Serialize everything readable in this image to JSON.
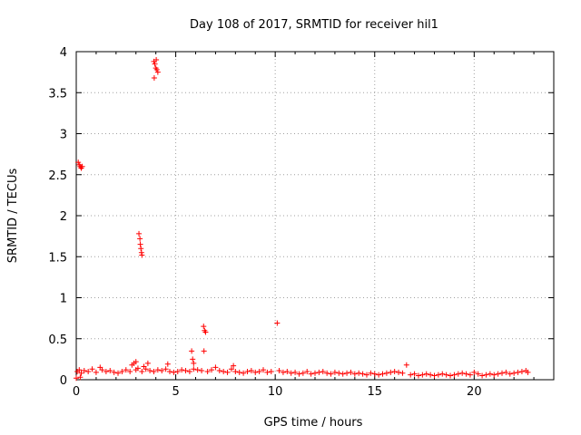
{
  "chart_data": {
    "type": "scatter",
    "title": "Day 108 of 2017, SRMTID for receiver hil1",
    "xlabel": "GPS time / hours",
    "ylabel": "SRMTID / TECUs",
    "xlim": [
      0,
      24
    ],
    "ylim": [
      0,
      4
    ],
    "xticks": [
      0,
      5,
      10,
      15,
      20
    ],
    "xtick_labels": [
      "0",
      "5",
      "10",
      "15",
      "20"
    ],
    "yticks": [
      0,
      0.5,
      1,
      1.5,
      2,
      2.5,
      3,
      3.5,
      4
    ],
    "ytick_labels": [
      "0",
      "0.5",
      "1",
      "1.5",
      "2",
      "2.5",
      "3",
      "3.5",
      "4"
    ],
    "grid": true,
    "marker": "plus",
    "marker_color": "#ff0000",
    "series": [
      {
        "name": "SRMTID",
        "x": [
          0.05,
          0.15,
          0.25,
          0.4,
          0.6,
          0.8,
          1.0,
          1.2,
          1.3,
          1.5,
          1.7,
          1.9,
          2.1,
          2.3,
          2.5,
          2.7,
          2.8,
          2.9,
          3.0,
          3.1,
          3.3,
          3.4,
          3.5,
          3.7,
          3.9,
          4.1,
          4.3,
          4.5,
          4.7,
          4.9,
          5.1,
          5.3,
          5.5,
          5.7,
          5.9,
          6.1,
          6.3,
          6.6,
          6.8,
          7.0,
          7.2,
          7.4,
          7.6,
          7.8,
          8.0,
          8.2,
          8.4,
          8.6,
          8.8,
          9.0,
          9.2,
          9.4,
          9.6,
          9.8,
          10.2,
          10.4,
          10.6,
          10.8,
          11.0,
          11.2,
          11.4,
          11.6,
          11.8,
          12.0,
          12.2,
          12.4,
          12.6,
          12.8,
          13.0,
          13.2,
          13.4,
          13.6,
          13.8,
          14.0,
          14.2,
          14.4,
          14.6,
          14.8,
          15.0,
          15.2,
          15.4,
          15.6,
          15.8,
          16.0,
          16.2,
          16.4,
          16.8,
          17.0,
          17.2,
          17.4,
          17.6,
          17.8,
          18.0,
          18.2,
          18.4,
          18.6,
          18.8,
          19.0,
          19.2,
          19.4,
          19.6,
          19.8,
          20.0,
          20.2,
          20.4,
          20.6,
          20.8,
          21.0,
          21.2,
          21.4,
          21.6,
          21.8,
          22.0,
          22.2,
          22.4,
          22.6,
          22.7,
          0.1,
          0.15,
          0.2,
          0.25,
          0.3,
          3.15,
          3.2,
          3.22,
          3.25,
          3.28,
          3.3,
          3.9,
          3.95,
          4.0,
          4.05,
          4.1,
          3.92,
          4.02,
          5.8,
          5.85,
          5.9,
          6.4,
          6.45,
          6.5,
          6.42,
          10.1,
          16.6,
          3.0,
          3.6,
          4.6,
          7.9,
          0.0,
          0.2
        ],
        "y": [
          0.1,
          0.12,
          0.08,
          0.11,
          0.1,
          0.13,
          0.09,
          0.15,
          0.12,
          0.1,
          0.11,
          0.09,
          0.08,
          0.1,
          0.12,
          0.1,
          0.18,
          0.2,
          0.12,
          0.14,
          0.1,
          0.16,
          0.13,
          0.11,
          0.1,
          0.12,
          0.11,
          0.13,
          0.1,
          0.09,
          0.1,
          0.12,
          0.11,
          0.1,
          0.13,
          0.12,
          0.11,
          0.1,
          0.12,
          0.15,
          0.11,
          0.1,
          0.09,
          0.13,
          0.1,
          0.09,
          0.08,
          0.1,
          0.11,
          0.09,
          0.1,
          0.12,
          0.09,
          0.1,
          0.11,
          0.09,
          0.1,
          0.08,
          0.09,
          0.07,
          0.08,
          0.1,
          0.07,
          0.08,
          0.09,
          0.1,
          0.08,
          0.07,
          0.09,
          0.08,
          0.07,
          0.08,
          0.09,
          0.07,
          0.08,
          0.07,
          0.06,
          0.08,
          0.07,
          0.06,
          0.07,
          0.08,
          0.09,
          0.1,
          0.09,
          0.08,
          0.06,
          0.07,
          0.05,
          0.06,
          0.07,
          0.06,
          0.05,
          0.06,
          0.07,
          0.06,
          0.05,
          0.06,
          0.07,
          0.08,
          0.07,
          0.06,
          0.09,
          0.07,
          0.05,
          0.06,
          0.07,
          0.06,
          0.07,
          0.08,
          0.09,
          0.07,
          0.08,
          0.09,
          0.1,
          0.11,
          0.09,
          2.65,
          2.62,
          2.6,
          2.58,
          2.6,
          1.78,
          1.72,
          1.65,
          1.6,
          1.55,
          1.52,
          3.88,
          3.85,
          3.8,
          3.78,
          3.75,
          3.68,
          3.9,
          0.35,
          0.25,
          0.2,
          0.65,
          0.6,
          0.58,
          0.35,
          0.69,
          0.18,
          0.22,
          0.2,
          0.19,
          0.17,
          0.02,
          0.03
        ]
      }
    ]
  }
}
